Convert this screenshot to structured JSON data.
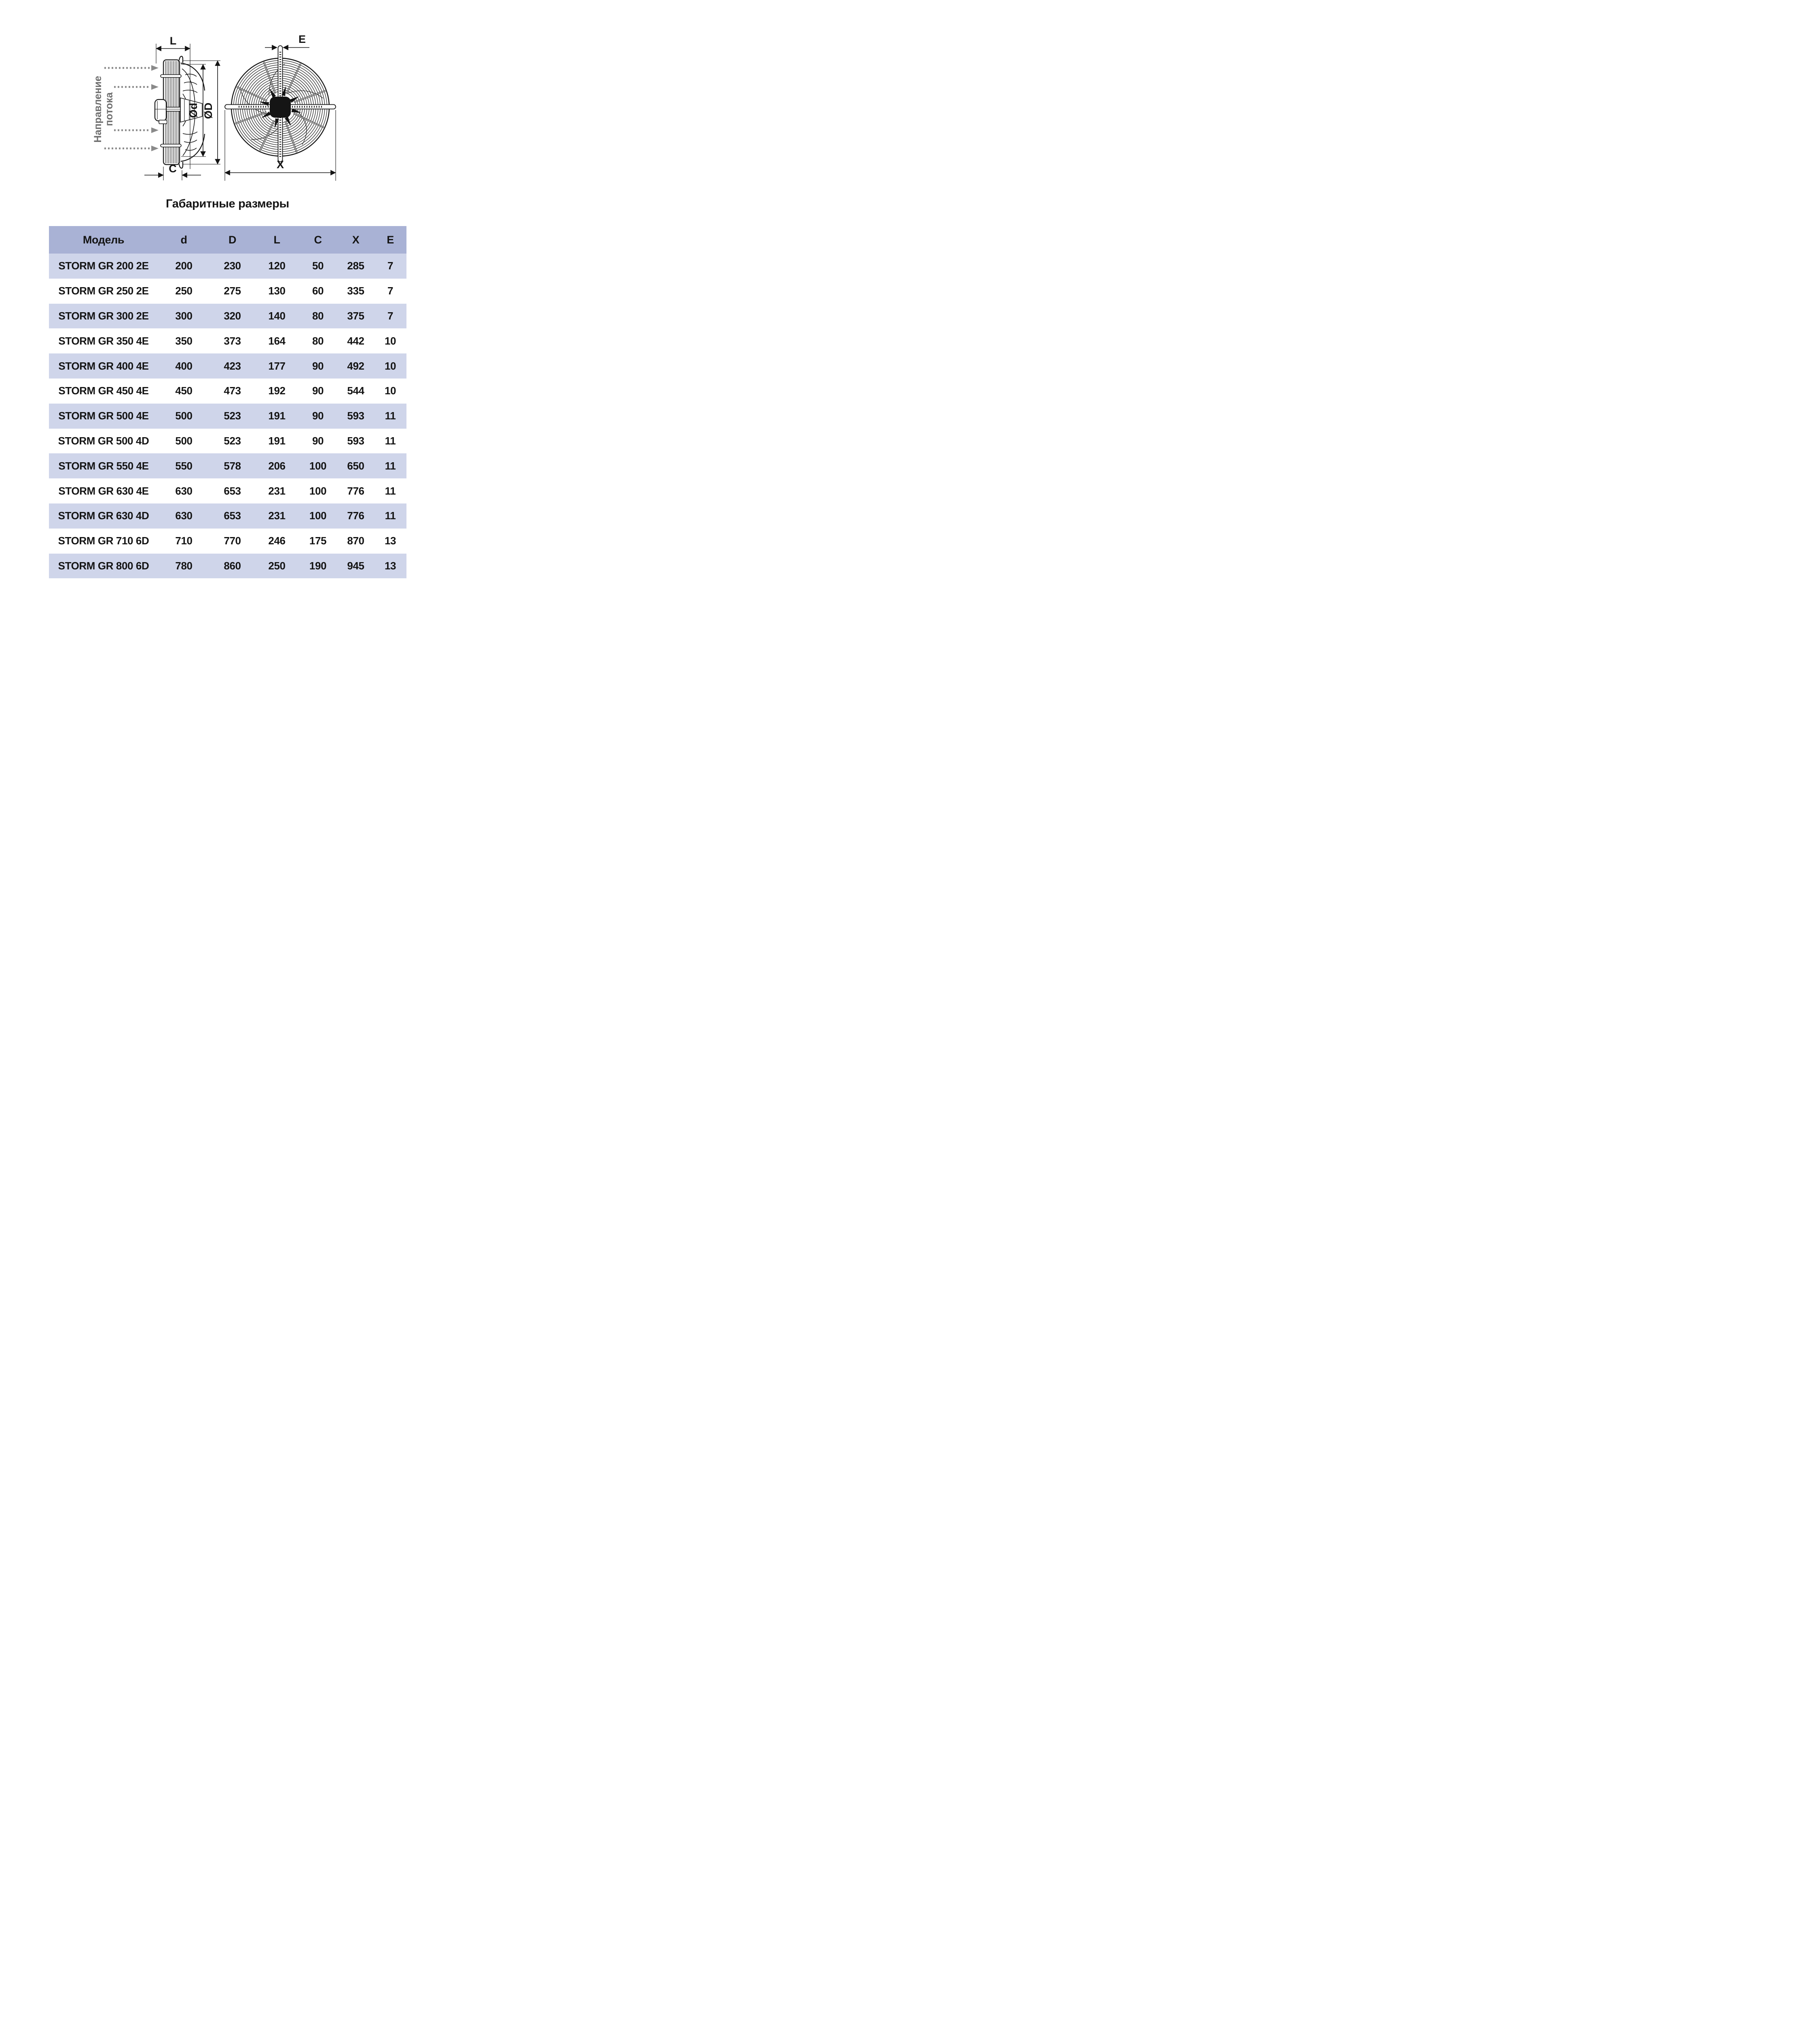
{
  "title": "Габаритные размеры",
  "diagram": {
    "flow_label_line1": "Направление",
    "flow_label_line2": "потока",
    "labels": {
      "L": "L",
      "E": "E",
      "Od": "Ød",
      "OD": "ØD",
      "C": "C",
      "X": "X"
    }
  },
  "table": {
    "headers": [
      "Модель",
      "d",
      "D",
      "L",
      "C",
      "X",
      "E"
    ],
    "rows": [
      [
        "STORM GR 200 2E",
        "200",
        "230",
        "120",
        "50",
        "285",
        "7"
      ],
      [
        "STORM GR 250 2E",
        "250",
        "275",
        "130",
        "60",
        "335",
        "7"
      ],
      [
        "STORM GR 300 2E",
        "300",
        "320",
        "140",
        "80",
        "375",
        "7"
      ],
      [
        "STORM GR 350 4E",
        "350",
        "373",
        "164",
        "80",
        "442",
        "10"
      ],
      [
        "STORM GR 400 4E",
        "400",
        "423",
        "177",
        "90",
        "492",
        "10"
      ],
      [
        "STORM GR 450 4E",
        "450",
        "473",
        "192",
        "90",
        "544",
        "10"
      ],
      [
        "STORM GR 500 4E",
        "500",
        "523",
        "191",
        "90",
        "593",
        "11"
      ],
      [
        "STORM GR 500 4D",
        "500",
        "523",
        "191",
        "90",
        "593",
        "11"
      ],
      [
        "STORM GR 550 4E",
        "550",
        "578",
        "206",
        "100",
        "650",
        "11"
      ],
      [
        "STORM GR 630 4E",
        "630",
        "653",
        "231",
        "100",
        "776",
        "11"
      ],
      [
        "STORM GR 630 4D",
        "630",
        "653",
        "231",
        "100",
        "776",
        "11"
      ],
      [
        "STORM GR 710 6D",
        "710",
        "770",
        "246",
        "175",
        "870",
        "13"
      ],
      [
        "STORM GR 800 6D",
        "780",
        "860",
        "250",
        "190",
        "945",
        "13"
      ]
    ]
  },
  "colors": {
    "header_bg": "#a9b2d5",
    "row_alt_bg": "#cfd5ea",
    "row_bg": "#ffffff",
    "ink": "#141414",
    "flow_gray": "#7b7b7b"
  }
}
